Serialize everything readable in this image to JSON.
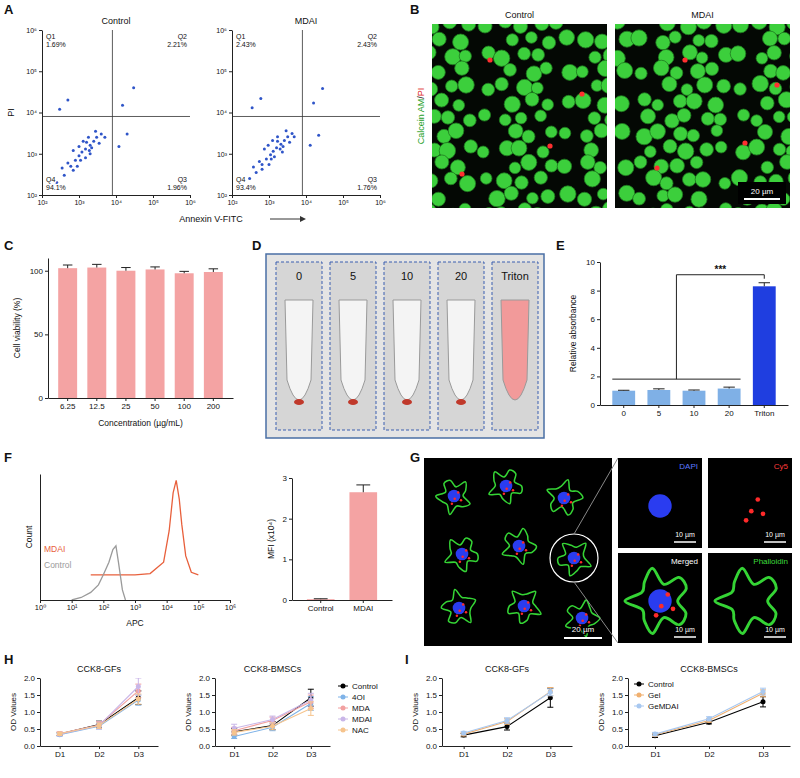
{
  "chart_data": [
    {
      "panel": "A",
      "type": "scatter",
      "title": "Control",
      "x_label": "Annexin V-FITC",
      "y_label": "PI",
      "log": true,
      "color": "#2f55c8",
      "xlim": [
        100,
        1000000
      ],
      "ylim": [
        100,
        1000000
      ],
      "xticks": [
        {
          "value": 100,
          "label": "10²"
        },
        {
          "value": 1000,
          "label": "10³"
        },
        {
          "value": 10000,
          "label": "10⁴"
        },
        {
          "value": 100000,
          "label": "10⁵"
        },
        {
          "value": 1000000,
          "label": "10⁶"
        }
      ],
      "yticks": [
        {
          "value": 100,
          "label": "10²"
        },
        {
          "value": 1000,
          "label": "10³"
        },
        {
          "value": 10000,
          "label": "10⁴"
        },
        {
          "value": 100000,
          "label": "10⁵"
        },
        {
          "value": 1000000,
          "label": "10⁶"
        }
      ],
      "x": [
        250,
        400,
        600,
        800,
        1000,
        1200,
        1500,
        2000,
        2500,
        3000,
        1500,
        2000,
        1000,
        700,
        1800,
        3500,
        500,
        900,
        1300,
        2200,
        4000,
        5000,
        350,
        1100,
        1600,
        2800,
        700,
        1900,
        300,
        500,
        15000,
        30000,
        12000,
        20000
      ],
      "values": [
        200,
        300,
        500,
        700,
        900,
        1100,
        1300,
        1600,
        2000,
        2500,
        800,
        1000,
        1500,
        1200,
        2500,
        1800,
        600,
        500,
        2000,
        1400,
        3000,
        2500,
        450,
        700,
        1900,
        3500,
        400,
        1200,
        12000,
        20000,
        15000,
        40000,
        1500,
        3000
      ],
      "gates": [
        8000,
        8000
      ],
      "quadrants": {
        "names": [
          "Q1",
          "Q2",
          "Q3",
          "Q4"
        ],
        "values": [
          1.69,
          2.21,
          1.96,
          94.1
        ],
        "value_labels": [
          "1.69%",
          "2.21%",
          "1.96%",
          "94.1%"
        ]
      }
    },
    {
      "type": "scatter",
      "title": "MDAI",
      "log": true,
      "color": "#2f55c8",
      "xlim": [
        100,
        1000000
      ],
      "ylim": [
        100,
        1000000
      ],
      "xticks": [
        {
          "value": 100,
          "label": "10²"
        },
        {
          "value": 1000,
          "label": "10³"
        },
        {
          "value": 10000,
          "label": "10⁴"
        },
        {
          "value": 100000,
          "label": "10⁵"
        },
        {
          "value": 1000000,
          "label": "10⁶"
        }
      ],
      "yticks": [
        {
          "value": 100,
          "label": "10²"
        },
        {
          "value": 1000,
          "label": "10³"
        },
        {
          "value": 10000,
          "label": "10⁴"
        },
        {
          "value": 100000,
          "label": "10⁵"
        },
        {
          "value": 1000000,
          "label": "10⁶"
        }
      ],
      "x": [
        300,
        450,
        650,
        850,
        1100,
        1300,
        1600,
        2100,
        2600,
        3200,
        1400,
        2300,
        950,
        750,
        1700,
        3600,
        550,
        1000,
        1250,
        2400,
        4200,
        4800,
        380,
        1150,
        1700,
        2900,
        650,
        2000,
        350,
        600,
        16000,
        28000,
        13000,
        22000
      ],
      "values": [
        250,
        350,
        550,
        750,
        950,
        1150,
        1400,
        1700,
        2100,
        2600,
        850,
        1100,
        1600,
        1300,
        2600,
        1900,
        650,
        550,
        2100,
        1500,
        3100,
        2600,
        480,
        750,
        2000,
        3600,
        420,
        1300,
        13000,
        22000,
        17000,
        38000,
        1600,
        2800
      ],
      "gates": [
        8000,
        8000
      ],
      "quadrants": {
        "names": [
          "Q1",
          "Q2",
          "Q3",
          "Q4"
        ],
        "values": [
          2.43,
          2.43,
          1.76,
          93.4
        ],
        "value_labels": [
          "2.43%",
          "2.43%",
          "1.76%",
          "93.4%"
        ]
      }
    },
    {
      "panel": "C",
      "type": "bar",
      "x_label": "Concentration (µg/mL)",
      "y_label": "Cell viability (%)",
      "categories": [
        "6.25",
        "12.5",
        "25",
        "50",
        "100",
        "200"
      ],
      "values": [
        102,
        102.5,
        100,
        101,
        98,
        99
      ],
      "errors": [
        2.5,
        2.5,
        2.5,
        2,
        1.5,
        2.5
      ],
      "color": "#f4a3a3",
      "ylim": [
        0,
        110
      ],
      "yticks": [
        0,
        50,
        100
      ]
    },
    {
      "panel": "E",
      "type": "bar",
      "y_label": "Relative absorbance",
      "categories": [
        "0",
        "5",
        "10",
        "20",
        "Triton"
      ],
      "values": [
        1,
        1.05,
        1,
        1.15,
        8.3
      ],
      "errors": [
        0.03,
        0.08,
        0.05,
        0.1,
        0.25
      ],
      "colors": [
        "#7fb0e6",
        "#7fb0e6",
        "#7fb0e6",
        "#7fb0e6",
        "#1f3ee0"
      ],
      "ylim": [
        0,
        10
      ],
      "yticks": [
        0,
        2,
        4,
        6,
        8,
        10
      ],
      "annotations": [
        {
          "text": "***"
        }
      ]
    },
    {
      "panel": "F",
      "type": "line",
      "x_label": "APC",
      "y_label": "Count",
      "log": "x",
      "tick_labels": "x",
      "legend": "left",
      "xlim": [
        1,
        1000000
      ],
      "ylim": [
        0,
        100
      ],
      "xticks": [
        {
          "value": 1,
          "label": "10⁰"
        },
        {
          "value": 10,
          "label": "10¹"
        },
        {
          "value": 100,
          "label": "10²"
        },
        {
          "value": 1000,
          "label": "10³"
        },
        {
          "value": 10000,
          "label": "10⁴"
        },
        {
          "value": 100000,
          "label": "10⁵"
        },
        {
          "value": 1000000,
          "label": "10⁶"
        }
      ],
      "x": [
        10,
        20,
        40,
        70,
        100,
        150,
        200,
        250,
        300,
        400,
        500,
        1000,
        3000,
        8000,
        12000,
        16000,
        20000,
        25000,
        30000,
        40000,
        60000,
        100000
      ],
      "series": [
        {
          "name": "MDAI",
          "color": "#e8603c",
          "values": [
            null,
            null,
            20,
            20,
            20,
            20,
            20,
            20,
            20,
            20,
            20,
            20,
            21,
            30,
            55,
            85,
            95,
            80,
            60,
            35,
            22,
            20
          ]
        },
        {
          "name": "Control",
          "color": "#9a9a9a",
          "values": [
            0,
            2,
            6,
            12,
            20,
            30,
            40,
            43,
            30,
            8,
            0,
            null,
            null,
            null,
            null,
            null,
            null,
            null,
            null,
            null,
            null,
            null
          ]
        }
      ]
    },
    {
      "type": "bar",
      "y_label": "MFI (x10⁴)",
      "categories": [
        "Control",
        "MDAI"
      ],
      "values": [
        0.02,
        2.65
      ],
      "errors": [
        0.01,
        0.18
      ],
      "color": "#f4a3a3",
      "ylim": [
        0,
        3
      ],
      "yticks": [
        0,
        1,
        2,
        3
      ]
    },
    {
      "panel": "H",
      "type": "line",
      "title": "CCK8-GFs",
      "y_label": "OD Values",
      "categories": [
        "D1",
        "D2",
        "D3"
      ],
      "marker": "circle",
      "ylim": [
        0,
        2
      ],
      "yticks": [
        {
          "value": 0,
          "label": "0.0"
        },
        0.5,
        {
          "value": 1,
          "label": "1.0"
        },
        1.5,
        {
          "value": 2,
          "label": "2.0"
        }
      ],
      "series": [
        {
          "color": "#000000",
          "values": [
            0.35,
            0.63,
            1.42
          ],
          "errors": [
            0.04,
            0.1,
            0.2
          ]
        },
        {
          "color": "#7fb3e8",
          "values": [
            0.33,
            0.58,
            1.35
          ],
          "errors": [
            0.04,
            0.08,
            0.15
          ]
        },
        {
          "color": "#f2a0a0",
          "values": [
            0.37,
            0.62,
            1.62
          ],
          "errors": [
            0.05,
            0.1,
            0.2
          ]
        },
        {
          "color": "#c9b6e8",
          "values": [
            0.35,
            0.6,
            1.75
          ],
          "errors": [
            0.05,
            0.1,
            0.25
          ]
        },
        {
          "color": "#f6c48d",
          "values": [
            0.36,
            0.6,
            1.38
          ],
          "errors": [
            0.04,
            0.08,
            0.15
          ]
        }
      ]
    },
    {
      "type": "line",
      "title": "CCK8-BMSCs",
      "y_label": "OD Values",
      "categories": [
        "D1",
        "D2",
        "D3"
      ],
      "marker": "circle",
      "legend": "right",
      "ylim": [
        0,
        2
      ],
      "yticks": [
        {
          "value": 0,
          "label": "0.0"
        },
        0.5,
        {
          "value": 1,
          "label": "1.0"
        },
        1.5,
        {
          "value": 2,
          "label": "2.0"
        }
      ],
      "series": [
        {
          "name": "Control",
          "color": "#000000",
          "values": [
            0.42,
            0.6,
            1.42
          ],
          "errors": [
            0.1,
            0.12,
            0.25
          ]
        },
        {
          "name": "4OI",
          "color": "#7fb3e8",
          "values": [
            0.28,
            0.55,
            1.25
          ],
          "errors": [
            0.06,
            0.1,
            0.2
          ]
        },
        {
          "name": "MDA",
          "color": "#f2a0a0",
          "values": [
            0.45,
            0.75,
            1.3
          ],
          "errors": [
            0.1,
            0.1,
            0.2
          ]
        },
        {
          "name": "MDAI",
          "color": "#c9b6e8",
          "values": [
            0.52,
            0.78,
            1.35
          ],
          "errors": [
            0.12,
            0.1,
            0.2
          ]
        },
        {
          "name": "NAC",
          "color": "#f6c48d",
          "values": [
            0.4,
            0.58,
            1.1
          ],
          "errors": [
            0.08,
            0.1,
            0.2
          ]
        }
      ]
    },
    {
      "panel": "I",
      "type": "line",
      "title": "CCK8-GFs",
      "y_label": "OD Values",
      "categories": [
        "D1",
        "D2",
        "D3"
      ],
      "marker": "circle",
      "ylim": [
        0,
        2
      ],
      "yticks": [
        {
          "value": 0,
          "label": "0.0"
        },
        0.5,
        {
          "value": 1,
          "label": "1.0"
        },
        1.5,
        {
          "value": 2,
          "label": "2.0"
        }
      ],
      "series": [
        {
          "color": "#000000",
          "values": [
            0.32,
            0.57,
            1.42
          ],
          "errors": [
            0.05,
            0.1,
            0.28
          ]
        },
        {
          "color": "#f0b070",
          "values": [
            0.35,
            0.72,
            1.6
          ],
          "errors": [
            0.05,
            0.08,
            0.12
          ]
        },
        {
          "color": "#a8c8f0",
          "values": [
            0.38,
            0.75,
            1.58
          ],
          "errors": [
            0.05,
            0.08,
            0.1
          ]
        }
      ]
    },
    {
      "type": "line",
      "title": "CCK8-BMSCs",
      "y_label": "OD Values",
      "categories": [
        "D1",
        "D2",
        "D3"
      ],
      "marker": "circle",
      "legend": "top-left",
      "ylim": [
        0,
        2
      ],
      "yticks": [
        {
          "value": 0,
          "label": "0.0"
        },
        0.5,
        {
          "value": 1,
          "label": "1.0"
        },
        1.5,
        {
          "value": 2,
          "label": "2.0"
        }
      ],
      "series": [
        {
          "name": "Control",
          "color": "#000000",
          "values": [
            0.3,
            0.7,
            1.3
          ],
          "errors": [
            0.05,
            0.05,
            0.15
          ]
        },
        {
          "name": "Gel",
          "color": "#f0b070",
          "values": [
            0.33,
            0.75,
            1.55
          ],
          "errors": [
            0.05,
            0.05,
            0.1
          ]
        },
        {
          "name": "GeMDAI",
          "color": "#a8c8f0",
          "values": [
            0.35,
            0.8,
            1.6
          ],
          "errors": [
            0.05,
            0.06,
            0.1
          ]
        }
      ]
    }
  ],
  "panel_B": {
    "panel": "B",
    "titles": [
      "Control",
      "MDAI"
    ],
    "stain": [
      "Calcein AM",
      "/",
      "PI"
    ],
    "scale_bar": "20 µm"
  },
  "panel_D": {
    "panel": "D",
    "tube_labels": [
      "0",
      "5",
      "10",
      "20",
      "Triton"
    ]
  },
  "panel_G": {
    "panel": "G",
    "channels": [
      "DAPI",
      "Cy5",
      "Merged",
      "Phalloidin"
    ],
    "scale_bars": [
      "20 µm",
      "10 µm"
    ]
  }
}
